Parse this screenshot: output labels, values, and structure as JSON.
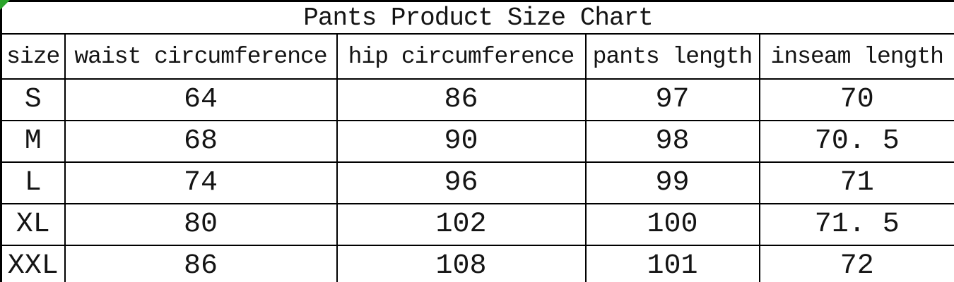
{
  "colors": {
    "border": "#000000",
    "text": "#141414",
    "background": "#ffffff",
    "corner_marker_green": "#2aa52a"
  },
  "chart_data": {
    "type": "table",
    "title": "Pants Product Size Chart",
    "columns": [
      "size",
      "waist circumference",
      "hip circumference",
      "pants length",
      "inseam length"
    ],
    "rows": [
      [
        "S",
        "64",
        "86",
        "97",
        "70"
      ],
      [
        "M",
        "68",
        "90",
        "98",
        "70. 5"
      ],
      [
        "L",
        "74",
        "96",
        "99",
        "71"
      ],
      [
        "XL",
        "80",
        "102",
        "100",
        "71. 5"
      ],
      [
        "XXL",
        "86",
        "108",
        "101",
        "72"
      ]
    ]
  }
}
